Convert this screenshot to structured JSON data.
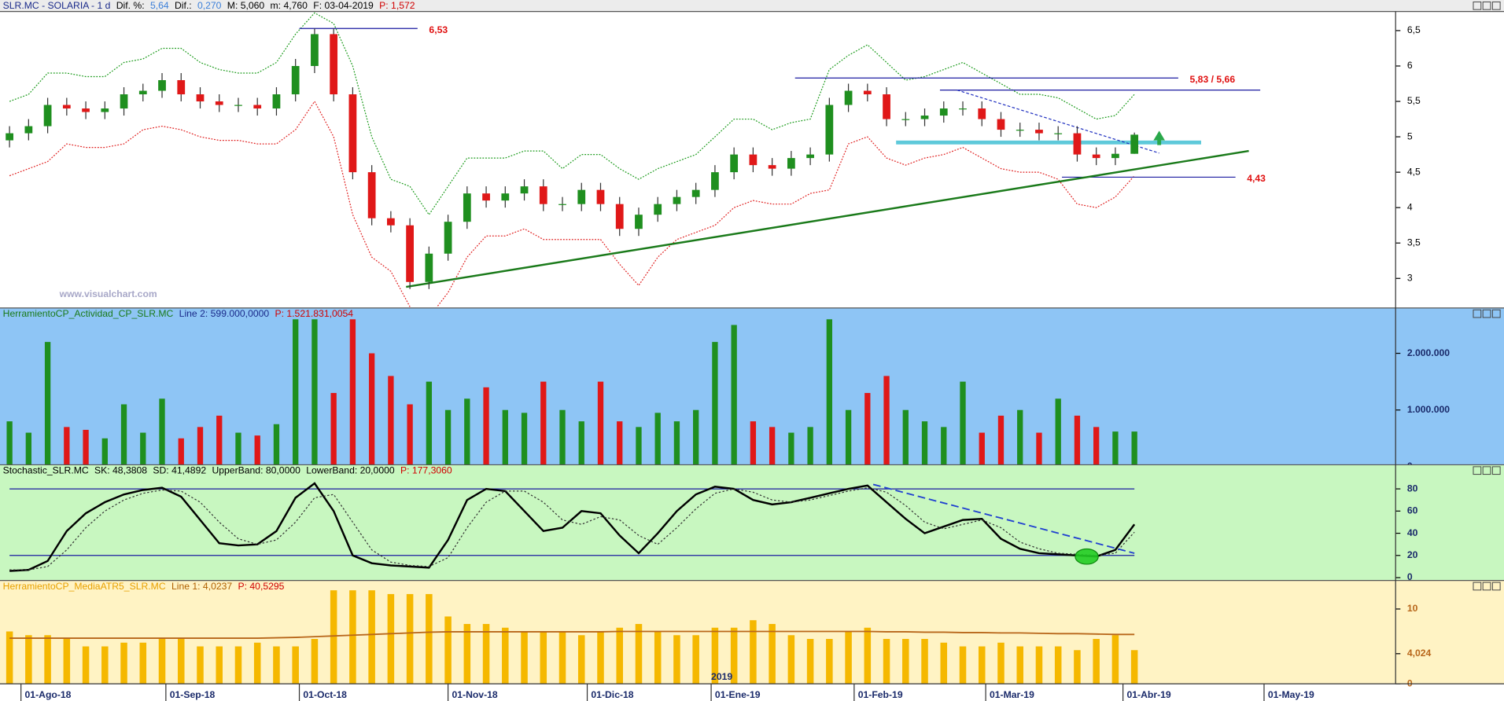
{
  "chart_data": [
    {
      "type": "candlestick",
      "header": [
        {
          "text": "SLR.MC - SOLARIA - 1 d",
          "color": "#1a2a8a"
        },
        {
          "text": "Dif. %:",
          "color": "#000000"
        },
        {
          "text": "5,64",
          "color": "#3b7fd9"
        },
        {
          "text": "Dif.:",
          "color": "#000000"
        },
        {
          "text": "0,270",
          "color": "#3b7fd9"
        },
        {
          "text": "M: 5,060",
          "color": "#000000"
        },
        {
          "text": "m: 4,760",
          "color": "#000000"
        },
        {
          "text": "F: 03-04-2019",
          "color": "#000000"
        },
        {
          "text": "P: 1,572",
          "color": "#d00000"
        }
      ],
      "watermark": "www.visualchart.com",
      "open": [
        4.95,
        5.05,
        5.15,
        5.45,
        5.4,
        5.35,
        5.4,
        5.6,
        5.65,
        5.8,
        5.6,
        5.5,
        5.45,
        5.45,
        5.4,
        5.6,
        6.0,
        6.45,
        5.6,
        4.5,
        3.85,
        3.75,
        2.95,
        3.35,
        3.8,
        4.2,
        4.1,
        4.2,
        4.3,
        4.05,
        4.05,
        4.25,
        4.05,
        3.7,
        3.9,
        4.05,
        4.15,
        4.25,
        4.5,
        4.75,
        4.6,
        4.55,
        4.7,
        4.75,
        5.45,
        5.65,
        5.6,
        5.25,
        5.25,
        5.3,
        5.4,
        5.4,
        5.25,
        5.1,
        5.1,
        5.05,
        5.05,
        4.75,
        4.7,
        4.76
      ],
      "high": [
        5.15,
        5.25,
        5.55,
        5.55,
        5.5,
        5.5,
        5.7,
        5.75,
        5.9,
        5.9,
        5.7,
        5.6,
        5.55,
        5.55,
        5.7,
        6.1,
        6.53,
        6.53,
        5.7,
        4.6,
        3.95,
        3.85,
        3.45,
        3.9,
        4.3,
        4.3,
        4.3,
        4.4,
        4.4,
        4.15,
        4.35,
        4.35,
        4.15,
        4.0,
        4.15,
        4.25,
        4.35,
        4.6,
        4.85,
        4.85,
        4.7,
        4.8,
        4.85,
        5.55,
        5.75,
        5.75,
        5.7,
        5.35,
        5.4,
        5.5,
        5.5,
        5.5,
        5.35,
        5.2,
        5.2,
        5.15,
        5.15,
        4.85,
        4.85,
        5.06
      ],
      "low": [
        4.85,
        4.95,
        5.05,
        5.3,
        5.25,
        5.25,
        5.3,
        5.5,
        5.55,
        5.5,
        5.4,
        5.35,
        5.35,
        5.3,
        5.3,
        5.5,
        5.9,
        5.5,
        4.4,
        3.75,
        3.65,
        2.85,
        2.85,
        3.25,
        3.7,
        4.0,
        4.0,
        4.1,
        3.95,
        3.95,
        3.95,
        3.95,
        3.6,
        3.6,
        3.8,
        3.95,
        4.05,
        4.15,
        4.4,
        4.5,
        4.45,
        4.45,
        4.6,
        4.65,
        5.35,
        5.5,
        5.15,
        5.15,
        5.15,
        5.2,
        5.3,
        5.15,
        5.0,
        5.0,
        4.95,
        4.95,
        4.65,
        4.6,
        4.6,
        4.76
      ],
      "close": [
        5.05,
        5.15,
        5.45,
        5.4,
        5.35,
        5.4,
        5.6,
        5.65,
        5.8,
        5.6,
        5.5,
        5.45,
        5.45,
        5.4,
        5.6,
        6.0,
        6.45,
        5.6,
        4.5,
        3.85,
        3.75,
        2.95,
        3.35,
        3.8,
        4.2,
        4.1,
        4.2,
        4.3,
        4.05,
        4.05,
        4.25,
        4.05,
        3.7,
        3.9,
        4.05,
        4.15,
        4.25,
        4.5,
        4.75,
        4.6,
        4.55,
        4.7,
        4.75,
        5.45,
        5.65,
        5.6,
        5.25,
        5.25,
        5.3,
        5.4,
        5.4,
        5.25,
        5.1,
        5.1,
        5.05,
        5.05,
        4.75,
        4.7,
        4.76,
        5.03
      ],
      "up_color": "#1f8f1f",
      "down_color": "#e01818",
      "bands": [
        {
          "color": "#1a9a1a",
          "values": [
            5.5,
            5.6,
            5.9,
            5.9,
            5.85,
            5.85,
            6.05,
            6.1,
            6.25,
            6.25,
            6.05,
            5.95,
            5.9,
            5.9,
            6.05,
            6.45,
            6.75,
            6.6,
            6.0,
            5.0,
            4.4,
            4.3,
            3.9,
            4.3,
            4.7,
            4.7,
            4.7,
            4.8,
            4.8,
            4.55,
            4.75,
            4.75,
            4.55,
            4.4,
            4.55,
            4.65,
            4.75,
            5.0,
            5.25,
            5.25,
            5.1,
            5.2,
            5.25,
            5.95,
            6.15,
            6.3,
            6.05,
            5.8,
            5.85,
            5.95,
            6.05,
            5.9,
            5.75,
            5.6,
            5.6,
            5.55,
            5.4,
            5.25,
            5.3,
            5.6
          ]
        },
        {
          "color": "#e02020",
          "values": [
            4.45,
            4.55,
            4.65,
            4.9,
            4.85,
            4.85,
            4.9,
            5.1,
            5.15,
            5.1,
            5.0,
            4.95,
            4.95,
            4.9,
            4.9,
            5.1,
            5.5,
            5.0,
            3.9,
            3.3,
            3.1,
            2.6,
            2.45,
            2.8,
            3.3,
            3.6,
            3.6,
            3.7,
            3.55,
            3.55,
            3.55,
            3.55,
            3.2,
            2.9,
            3.3,
            3.55,
            3.65,
            3.75,
            4.0,
            4.1,
            4.05,
            4.05,
            4.2,
            4.25,
            4.9,
            5.0,
            4.7,
            4.6,
            4.7,
            4.75,
            4.85,
            4.7,
            4.55,
            4.5,
            4.5,
            4.4,
            4.05,
            4.0,
            4.15,
            4.45
          ]
        }
      ],
      "ylim": [
        2.61,
        6.77
      ],
      "yticks": [
        3,
        {
          "value": 3.5,
          "label": "3,5"
        },
        4,
        {
          "value": 4.5,
          "label": "4,5"
        },
        5,
        {
          "value": 5.5,
          "label": "5,5"
        },
        6,
        {
          "value": 6.5,
          "label": "6,5"
        }
      ],
      "xlim": [
        -0.5,
        72.7
      ],
      "xticks": [
        {
          "value": 0.6,
          "label": "01-Ago-18"
        },
        {
          "value": 8.2,
          "label": "01-Sep-18"
        },
        {
          "value": 15.2,
          "label": "01-Oct-18"
        },
        {
          "value": 23.0,
          "label": "01-Nov-18"
        },
        {
          "value": 30.3,
          "label": "01-Dic-18"
        },
        {
          "value": 36.8,
          "label": "01-Ene-19"
        },
        {
          "value": 44.3,
          "label": "01-Feb-19"
        },
        {
          "value": 51.2,
          "label": "01-Mar-19"
        },
        {
          "value": 58.4,
          "label": "01-Abr-19"
        },
        {
          "value": 65.8,
          "label": "01-May-19"
        }
      ],
      "year_marker": {
        "value": 36.8,
        "label": "2019"
      },
      "levels": [
        {
          "value": 6.53,
          "label": "6,53",
          "x": [
            15.2,
            21.4
          ],
          "color": "#1a1aa0"
        },
        {
          "value": 5.83,
          "label": "5,83 / 5,66",
          "x": [
            41.2,
            61.3
          ],
          "color": "#1a1aa0"
        },
        {
          "value": 5.66,
          "x": [
            48.8,
            65.6
          ],
          "color": "#1a1aa0"
        },
        {
          "value": 4.43,
          "label": "4,43",
          "x": [
            55.2,
            64.3
          ],
          "color": "#1a1aa0"
        },
        {
          "value": 4.92,
          "x": [
            46.5,
            62.5
          ],
          "color": "#5ec9da",
          "width": 4
        }
      ],
      "label_color": "#e01010",
      "lines": [
        {
          "x": [
            20.8,
            65.0
          ],
          "y": [
            2.88,
            4.8
          ],
          "color": "#1a7a1a",
          "width": 2
        },
        {
          "x": [
            49.7,
            60.3
          ],
          "y": [
            5.66,
            4.77
          ],
          "color": "#2030c0",
          "width": 1,
          "dash": true
        }
      ],
      "arrow": {
        "x": 60.3,
        "y": 4.95,
        "color": "#2aa84a"
      }
    },
    {
      "type": "bar",
      "header": [
        {
          "text": "HerramientoCP_Actividad_CP_SLR.MC",
          "color": "#1a7a1a"
        },
        {
          "text": "Line 2: 599.000,0000",
          "color": "#1a2a8a"
        },
        {
          "text": "P: 1.521.831,0054",
          "color": "#d00000"
        }
      ],
      "values": [
        800000,
        600000,
        2200000,
        700000,
        650000,
        500000,
        1100000,
        600000,
        1200000,
        500000,
        700000,
        900000,
        600000,
        550000,
        750000,
        2600000,
        2600000,
        1300000,
        2600000,
        2000000,
        1600000,
        1100000,
        1500000,
        1000000,
        1200000,
        1400000,
        1000000,
        950000,
        1500000,
        1000000,
        800000,
        1500000,
        800000,
        700000,
        950000,
        800000,
        1000000,
        2200000,
        2500000,
        800000,
        700000,
        600000,
        700000,
        2600000,
        1000000,
        1300000,
        1600000,
        1000000,
        800000,
        700000,
        1500000,
        600000,
        900000,
        1000000,
        600000,
        1200000,
        900000,
        700000,
        620000,
        620000
      ],
      "up_color": "#1f8f1f",
      "down_color": "#e01818",
      "ylim": [
        0,
        2800000
      ],
      "yticks": [
        0,
        {
          "value": 1000000,
          "label": "1.000.000"
        },
        {
          "value": 2000000,
          "label": "2.000.000"
        }
      ]
    },
    {
      "type": "line",
      "header": [
        {
          "text": "Stochastic_SLR.MC",
          "color": "#000000"
        },
        {
          "text": "SK: 48,3808",
          "color": "#000000"
        },
        {
          "text": "SD: 41,4892",
          "color": "#000000"
        },
        {
          "text": "UpperBand: 80,0000",
          "color": "#000000"
        },
        {
          "text": "LowerBand: 20,0000",
          "color": "#000000"
        },
        {
          "text": "P: 177,3060",
          "color": "#d00000"
        }
      ],
      "series": [
        {
          "color": "#000000",
          "width": 2,
          "values": [
            6,
            7,
            15,
            42,
            58,
            68,
            75,
            79,
            81,
            73,
            52,
            31,
            29,
            30,
            42,
            72,
            85,
            60,
            20,
            13,
            11,
            10,
            9,
            34,
            70,
            80,
            78,
            60,
            42,
            45,
            60,
            58,
            38,
            22,
            40,
            60,
            75,
            82,
            80,
            70,
            66,
            68,
            72,
            76,
            80,
            83,
            68,
            53,
            40,
            46,
            52,
            53,
            35,
            26,
            22,
            21,
            20,
            19,
            25,
            48
          ]
        },
        {
          "color": "#333333",
          "width": 1,
          "dash": true,
          "values": [
            7,
            7,
            10,
            25,
            45,
            60,
            70,
            76,
            79,
            78,
            68,
            50,
            35,
            30,
            34,
            50,
            72,
            75,
            50,
            25,
            14,
            11,
            10,
            18,
            45,
            68,
            78,
            78,
            68,
            52,
            48,
            55,
            52,
            38,
            30,
            45,
            62,
            76,
            80,
            77,
            70,
            68,
            70,
            74,
            78,
            81,
            77,
            65,
            50,
            44,
            48,
            52,
            45,
            32,
            26,
            22,
            21,
            20,
            22,
            41
          ]
        }
      ],
      "bands": [
        80,
        20
      ],
      "band_color": "#1a1aa0",
      "ylim": [
        0,
        100
      ],
      "yticks": [
        0,
        20,
        40,
        60,
        80
      ],
      "lines": [
        {
          "x": [
            45.3,
            59.0
          ],
          "y": [
            84,
            22
          ],
          "color": "#2040d0",
          "width": 1.5,
          "dash": true
        }
      ],
      "highlight": {
        "x": 56.5,
        "y": 19,
        "color": "#22cc22"
      }
    },
    {
      "type": "bar_line",
      "header": [
        {
          "text": "HerramientoCP_MediaATR5_SLR.MC",
          "color": "#e8a000"
        },
        {
          "text": "Line 1: 4,0237",
          "color": "#b06000"
        },
        {
          "text": "P: 40,5295",
          "color": "#d00000"
        }
      ],
      "values": [
        7,
        6.5,
        6.5,
        6,
        5,
        5,
        5.5,
        5.5,
        6,
        6,
        5,
        5,
        5,
        5.5,
        5,
        5,
        6,
        12.5,
        12.5,
        12.5,
        12,
        12,
        12,
        9,
        8,
        8,
        7.5,
        7,
        7,
        7,
        6.5,
        7,
        7.5,
        8,
        7,
        6.5,
        6.5,
        7.5,
        7.5,
        8.5,
        8,
        6.5,
        6,
        6,
        7,
        7.5,
        6,
        6,
        6,
        5.5,
        5,
        5,
        5.5,
        5,
        5,
        5,
        4.5,
        6,
        6.5,
        4.5
      ],
      "color": "#f5b800",
      "series": [
        {
          "color": "#b8661a",
          "values": [
            6.1,
            6.1,
            6.1,
            6.1,
            6.1,
            6.1,
            6.1,
            6.1,
            6.1,
            6.1,
            6.1,
            6.1,
            6.1,
            6.1,
            6.15,
            6.2,
            6.3,
            6.4,
            6.5,
            6.6,
            6.7,
            6.8,
            6.9,
            6.95,
            6.95,
            6.95,
            6.95,
            6.95,
            6.95,
            6.95,
            6.95,
            6.95,
            7.0,
            7.0,
            7.0,
            7.0,
            7.0,
            7.0,
            7.0,
            7.0,
            7.0,
            7.0,
            7.0,
            7.0,
            7.0,
            7.0,
            6.95,
            6.95,
            6.9,
            6.9,
            6.85,
            6.85,
            6.8,
            6.8,
            6.75,
            6.7,
            6.7,
            6.65,
            6.6,
            6.6
          ]
        }
      ],
      "ylim": [
        0,
        13.3
      ],
      "yticks": [
        0,
        10,
        {
          "value": 4.0237,
          "label": "4,024"
        }
      ]
    }
  ]
}
